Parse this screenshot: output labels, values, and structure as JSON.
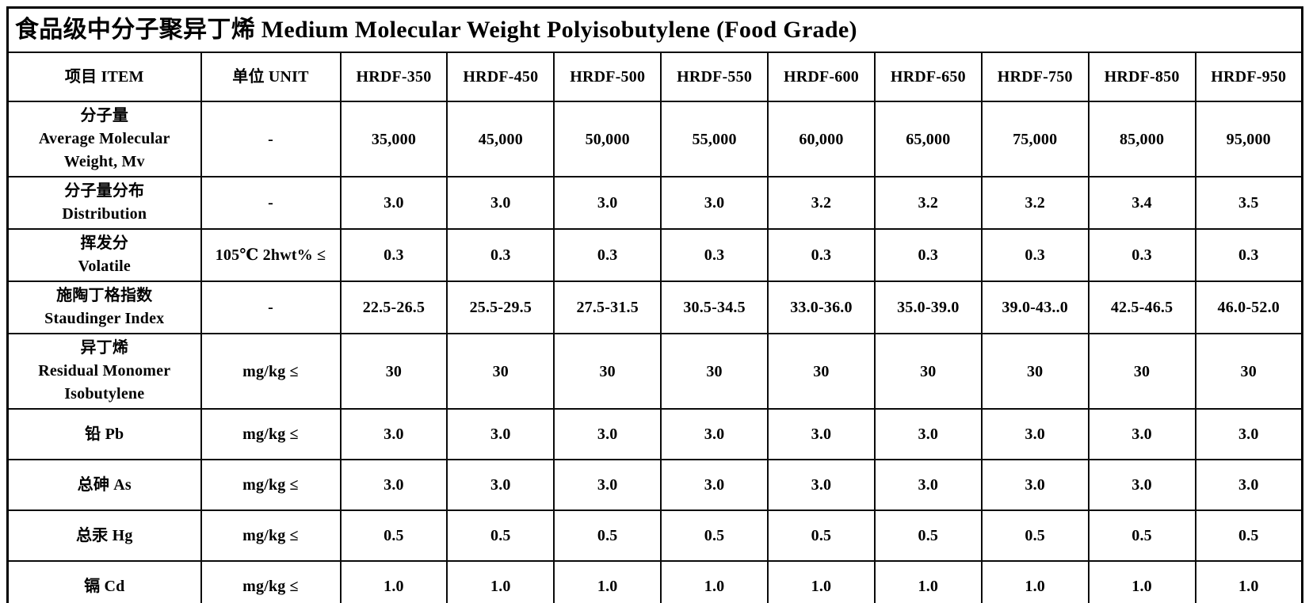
{
  "title": "食品级中分子聚异丁烯 Medium Molecular Weight Polyisobutylene (Food Grade)",
  "table": {
    "header": {
      "item": "项目 ITEM",
      "unit": "单位 UNIT",
      "grades": [
        "HRDF-350",
        "HRDF-450",
        "HRDF-500",
        "HRDF-550",
        "HRDF-600",
        "HRDF-650",
        "HRDF-750",
        "HRDF-850",
        "HRDF-950"
      ]
    },
    "rows": [
      {
        "item_lines": [
          "分子量",
          "Average Molecular",
          "Weight, Mv"
        ],
        "unit": "-",
        "values": [
          "35,000",
          "45,000",
          "50,000",
          "55,000",
          "60,000",
          "65,000",
          "75,000",
          "85,000",
          "95,000"
        ]
      },
      {
        "item_lines": [
          "分子量分布",
          "Distribution"
        ],
        "unit": "-",
        "values": [
          "3.0",
          "3.0",
          "3.0",
          "3.0",
          "3.2",
          "3.2",
          "3.2",
          "3.4",
          "3.5"
        ]
      },
      {
        "item_lines": [
          "挥发分",
          "Volatile"
        ],
        "unit": "105℃ 2hwt% ≤",
        "values": [
          "0.3",
          "0.3",
          "0.3",
          "0.3",
          "0.3",
          "0.3",
          "0.3",
          "0.3",
          "0.3"
        ]
      },
      {
        "item_lines": [
          "施陶丁格指数",
          "Staudinger Index"
        ],
        "unit": "-",
        "values": [
          "22.5-26.5",
          "25.5-29.5",
          "27.5-31.5",
          "30.5-34.5",
          "33.0-36.0",
          "35.0-39.0",
          "39.0-43..0",
          "42.5-46.5",
          "46.0-52.0"
        ]
      },
      {
        "item_lines": [
          "异丁烯",
          "Residual Monomer",
          "Isobutylene"
        ],
        "unit": "mg/kg ≤",
        "values": [
          "30",
          "30",
          "30",
          "30",
          "30",
          "30",
          "30",
          "30",
          "30"
        ]
      },
      {
        "item_lines": [
          "铅 Pb"
        ],
        "unit": "mg/kg ≤",
        "values": [
          "3.0",
          "3.0",
          "3.0",
          "3.0",
          "3.0",
          "3.0",
          "3.0",
          "3.0",
          "3.0"
        ]
      },
      {
        "item_lines": [
          "总砷 As"
        ],
        "unit": "mg/kg ≤",
        "values": [
          "3.0",
          "3.0",
          "3.0",
          "3.0",
          "3.0",
          "3.0",
          "3.0",
          "3.0",
          "3.0"
        ]
      },
      {
        "item_lines": [
          "总汞 Hg"
        ],
        "unit": "mg/kg ≤",
        "values": [
          "0.5",
          "0.5",
          "0.5",
          "0.5",
          "0.5",
          "0.5",
          "0.5",
          "0.5",
          "0.5"
        ]
      },
      {
        "item_lines": [
          "镉 Cd"
        ],
        "unit": "mg/kg ≤",
        "values": [
          "1.0",
          "1.0",
          "1.0",
          "1.0",
          "1.0",
          "1.0",
          "1.0",
          "1.0",
          "1.0"
        ]
      }
    ]
  },
  "layout_colors": {
    "border": "#000000",
    "background": "#ffffff",
    "text": "#000000"
  }
}
